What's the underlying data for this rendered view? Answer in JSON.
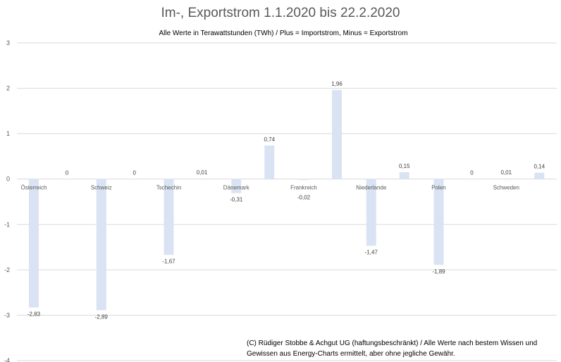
{
  "chart_data": {
    "type": "bar",
    "title": "Im-, Exportstrom 1.1.2020 bis 22.2.2020",
    "subtitle": "Alle Werte in Terawattstunden (TWh) / Plus = Importstrom, Minus = Exportstrom",
    "categories": [
      "Österreich",
      "Schweiz",
      "Tschechin",
      "Dänemark",
      "Frankreich",
      "Niederlande",
      "Polen",
      "Schweden"
    ],
    "series": [
      {
        "values": [
          -2.83,
          -2.89,
          -1.67,
          -0.31,
          -0.02,
          -1.47,
          -1.89,
          0.01
        ],
        "labels": [
          "-2,83",
          "-2,89",
          "-1,67",
          "-0,31",
          "-0,02",
          "-1,47",
          "-1,89",
          "0,01"
        ]
      },
      {
        "values": [
          0,
          0,
          0.01,
          0.74,
          1.96,
          0.15,
          0,
          0.14
        ],
        "labels": [
          "0",
          "0",
          "0,01",
          "0,74",
          "1,96",
          "0,15",
          "0",
          "0,14"
        ]
      }
    ],
    "ylim": [
      -4,
      3
    ],
    "yticks": [
      3,
      2,
      1,
      0,
      -1,
      -2,
      -3,
      -4
    ],
    "grid": true,
    "bar_color": "#dae3f3",
    "footnote": "(C) Rüdiger Stobbe & Achgut UG (haftungsbeschränkt) / Alle Werte nach bestem Wissen und Gewissen aus Energy-Charts ermittelt, aber ohne jegliche Gewähr."
  }
}
